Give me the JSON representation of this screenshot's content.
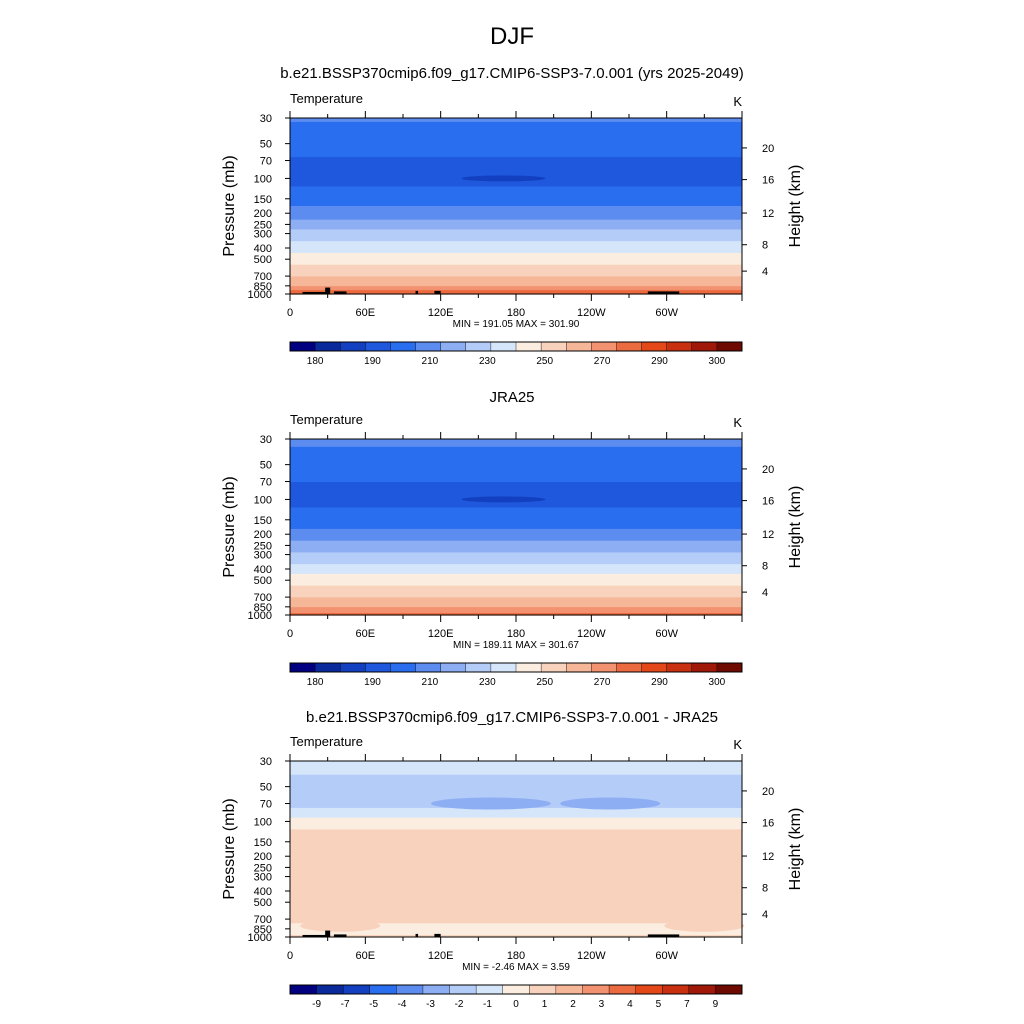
{
  "page_title": "DJF",
  "colors": {
    "abs_scale": [
      "#000080",
      "#0a2a9c",
      "#1340c0",
      "#1f58dc",
      "#2a6ef0",
      "#5c8cf0",
      "#8eaef4",
      "#b4ccf8",
      "#d6e6fa",
      "#fbeee0",
      "#f8d2bc",
      "#f6b698",
      "#f29270",
      "#ec6a40",
      "#e44818",
      "#c83010",
      "#a01808",
      "#6e0a00"
    ],
    "diff_scale": [
      "#000080",
      "#0a2a9c",
      "#1340c0",
      "#2a6ef0",
      "#5c8cf0",
      "#8eaef4",
      "#b4ccf8",
      "#d6e6fa",
      "#fbeee0",
      "#f8d2bc",
      "#f6b698",
      "#f29270",
      "#ec6a40",
      "#e44818",
      "#c83010",
      "#a01808",
      "#6e0a00"
    ],
    "terrain": "#000000"
  },
  "chart_data": [
    {
      "type": "heatmap",
      "panel": "model",
      "title": "b.e21.BSSP370cmip6.f09_g17.CMIP6-SSP3-7.0.001 (yrs 2025-2049)",
      "left_label": "Temperature",
      "right_label": "K",
      "xlabel": "",
      "ylabel": "Pressure (mb)",
      "y2label": "Height (km)",
      "x_ticks": [
        "0",
        "60E",
        "120E",
        "180",
        "120W",
        "60W"
      ],
      "xlim": [
        0,
        360
      ],
      "y_ticks": [
        "30",
        "50",
        "70",
        "100",
        "150",
        "200",
        "250",
        "300",
        "400",
        "500",
        "700",
        "850",
        "1000"
      ],
      "y_tick_values": [
        30,
        50,
        70,
        100,
        150,
        200,
        250,
        300,
        400,
        500,
        700,
        850,
        1000
      ],
      "ylim": [
        1000,
        30
      ],
      "y2_ticks": [
        "20",
        "16",
        "12",
        "8",
        "4"
      ],
      "stats": "MIN = 191.05  MAX = 301.90",
      "min": 191.05,
      "max": 301.9,
      "profile": [
        [
          30,
          211
        ],
        [
          50,
          204
        ],
        [
          70,
          199
        ],
        [
          100,
          197
        ],
        [
          150,
          205
        ],
        [
          200,
          215
        ],
        [
          250,
          225
        ],
        [
          300,
          233
        ],
        [
          400,
          246
        ],
        [
          500,
          256
        ],
        [
          700,
          270
        ],
        [
          850,
          280
        ],
        [
          1000,
          289
        ]
      ],
      "colorbar_labels": [
        "180",
        "190",
        "210",
        "230",
        "250",
        "270",
        "290",
        "300"
      ],
      "terrain": true
    },
    {
      "type": "heatmap",
      "panel": "obs",
      "title": "JRA25",
      "left_label": "Temperature",
      "right_label": "K",
      "xlabel": "",
      "ylabel": "Pressure (mb)",
      "y2label": "Height (km)",
      "x_ticks": [
        "0",
        "60E",
        "120E",
        "180",
        "120W",
        "60W"
      ],
      "xlim": [
        0,
        360
      ],
      "y_ticks": [
        "30",
        "50",
        "70",
        "100",
        "150",
        "200",
        "250",
        "300",
        "400",
        "500",
        "700",
        "850",
        "1000"
      ],
      "y_tick_values": [
        30,
        50,
        70,
        100,
        150,
        200,
        250,
        300,
        400,
        500,
        700,
        850,
        1000
      ],
      "ylim": [
        1000,
        30
      ],
      "y2_ticks": [
        "20",
        "16",
        "12",
        "8",
        "4"
      ],
      "stats": "MIN = 189.11  MAX = 301.67",
      "min": 189.11,
      "max": 301.67,
      "profile": [
        [
          30,
          212
        ],
        [
          50,
          205
        ],
        [
          70,
          200
        ],
        [
          100,
          197
        ],
        [
          150,
          204
        ],
        [
          200,
          214
        ],
        [
          250,
          224
        ],
        [
          300,
          232
        ],
        [
          400,
          245
        ],
        [
          500,
          255
        ],
        [
          700,
          269
        ],
        [
          850,
          279
        ],
        [
          1000,
          288
        ]
      ],
      "colorbar_labels": [
        "180",
        "190",
        "210",
        "230",
        "250",
        "270",
        "290",
        "300"
      ],
      "terrain": false
    },
    {
      "type": "heatmap",
      "panel": "diff",
      "title": "b.e21.BSSP370cmip6.f09_g17.CMIP6-SSP3-7.0.001 - JRA25",
      "left_label": "Temperature",
      "right_label": "K",
      "xlabel": "",
      "ylabel": "Pressure (mb)",
      "y2label": "Height (km)",
      "x_ticks": [
        "0",
        "60E",
        "120E",
        "180",
        "120W",
        "60W"
      ],
      "xlim": [
        0,
        360
      ],
      "y_ticks": [
        "30",
        "50",
        "70",
        "100",
        "150",
        "200",
        "250",
        "300",
        "400",
        "500",
        "700",
        "850",
        "1000"
      ],
      "y_tick_values": [
        30,
        50,
        70,
        100,
        150,
        200,
        250,
        300,
        400,
        500,
        700,
        850,
        1000
      ],
      "ylim": [
        1000,
        30
      ],
      "y2_ticks": [
        "20",
        "16",
        "12",
        "8",
        "4"
      ],
      "stats": "MIN =  -2.46  MAX =   3.59",
      "min": -2.46,
      "max": 3.59,
      "profile": [
        [
          30,
          -0.6
        ],
        [
          50,
          -1.4
        ],
        [
          70,
          -1.6
        ],
        [
          100,
          0.5
        ],
        [
          150,
          1.8
        ],
        [
          200,
          1.9
        ],
        [
          300,
          1.9
        ],
        [
          400,
          1.8
        ],
        [
          500,
          1.8
        ],
        [
          700,
          1.2
        ],
        [
          850,
          0.8
        ],
        [
          1000,
          1.1
        ]
      ],
      "colorbar_labels": [
        "-9",
        "-7",
        "-5",
        "-4",
        "-3",
        "-2",
        "-1",
        "0",
        "1",
        "2",
        "3",
        "4",
        "5",
        "7",
        "9"
      ],
      "terrain": true
    }
  ]
}
